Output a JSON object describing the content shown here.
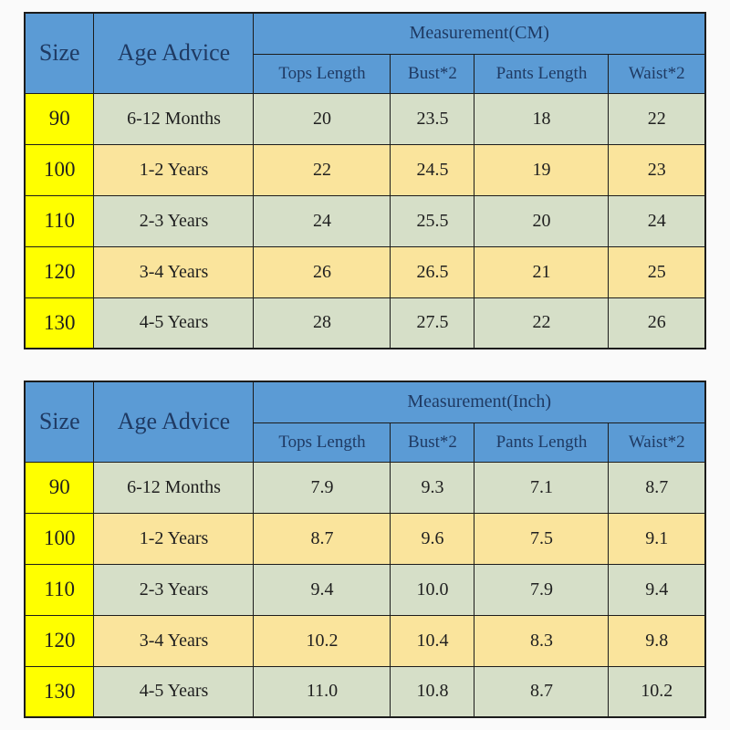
{
  "colors": {
    "header_blue": "#5b9bd5",
    "header_text_navy": "#1f3a63",
    "size_column_yellow": "#ffff00",
    "row_green": "#d6dfc8",
    "row_cream": "#fae49c",
    "border": "#1c1c1c",
    "page_background": "#fafafa"
  },
  "chart_data": [
    {
      "type": "table",
      "title": "Measurement(CM)",
      "corner_headers": {
        "size": "Size",
        "age": "Age Advice"
      },
      "measurement_header": "Measurement(CM)",
      "sub_headers": [
        "Tops Length",
        "Bust*2",
        "Pants Length",
        "Waist*2"
      ],
      "rows": [
        {
          "size": "90",
          "age": "6-12 Months",
          "values": [
            "20",
            "23.5",
            "18",
            "22"
          ]
        },
        {
          "size": "100",
          "age": "1-2 Years",
          "values": [
            "22",
            "24.5",
            "19",
            "23"
          ]
        },
        {
          "size": "110",
          "age": "2-3 Years",
          "values": [
            "24",
            "25.5",
            "20",
            "24"
          ]
        },
        {
          "size": "120",
          "age": "3-4 Years",
          "values": [
            "26",
            "26.5",
            "21",
            "25"
          ]
        },
        {
          "size": "130",
          "age": "4-5 Years",
          "values": [
            "28",
            "27.5",
            "22",
            "26"
          ]
        }
      ]
    },
    {
      "type": "table",
      "title": "Measurement(Inch)",
      "corner_headers": {
        "size": "Size",
        "age": "Age Advice"
      },
      "measurement_header": "Measurement(Inch)",
      "sub_headers": [
        "Tops Length",
        "Bust*2",
        "Pants Length",
        "Waist*2"
      ],
      "rows": [
        {
          "size": "90",
          "age": "6-12 Months",
          "values": [
            "7.9",
            "9.3",
            "7.1",
            "8.7"
          ]
        },
        {
          "size": "100",
          "age": "1-2 Years",
          "values": [
            "8.7",
            "9.6",
            "7.5",
            "9.1"
          ]
        },
        {
          "size": "110",
          "age": "2-3 Years",
          "values": [
            "9.4",
            "10.0",
            "7.9",
            "9.4"
          ]
        },
        {
          "size": "120",
          "age": "3-4 Years",
          "values": [
            "10.2",
            "10.4",
            "8.3",
            "9.8"
          ]
        },
        {
          "size": "130",
          "age": "4-5 Years",
          "values": [
            "11.0",
            "10.8",
            "8.7",
            "10.2"
          ]
        }
      ]
    }
  ]
}
